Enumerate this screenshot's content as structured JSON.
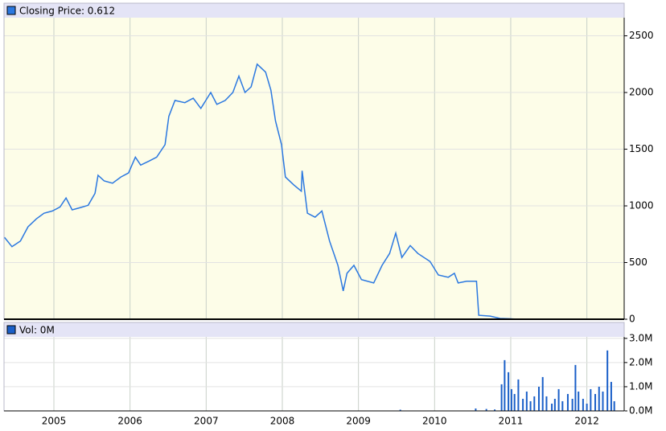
{
  "chart_data": [
    {
      "type": "line",
      "x": [
        2004.35,
        2004.45,
        2004.56,
        2004.66,
        2004.77,
        2004.87,
        2004.98,
        2005.08,
        2005.16,
        2005.24,
        2005.35,
        2005.45,
        2005.54,
        2005.58,
        2005.66,
        2005.77,
        2005.88,
        2005.98,
        2006.07,
        2006.14,
        2006.25,
        2006.35,
        2006.46,
        2006.51,
        2006.59,
        2006.72,
        2006.83,
        2006.93,
        2007.06,
        2007.14,
        2007.25,
        2007.35,
        2007.43,
        2007.51,
        2007.59,
        2007.67,
        2007.78,
        2007.85,
        2007.91,
        2007.99,
        2008.04,
        2008.15,
        2008.25,
        2008.26,
        2008.33,
        2008.43,
        2008.52,
        2008.62,
        2008.73,
        2008.8,
        2008.85,
        2008.94,
        2009.04,
        2009.2,
        2009.31,
        2009.41,
        2009.49,
        2009.57,
        2009.68,
        2009.78,
        2009.94,
        2010.05,
        2010.18,
        2010.26,
        2010.31,
        2010.42,
        2010.55,
        2010.58,
        2010.73,
        2010.86,
        2011.05,
        2011.68,
        2012.42
      ],
      "series": [
        {
          "name": "Closing Price: 0.612",
          "color": "#2b78e0",
          "values": [
            723,
            640,
            690,
            815,
            885,
            935,
            955,
            990,
            1070,
            965,
            985,
            1005,
            1110,
            1270,
            1220,
            1200,
            1255,
            1290,
            1430,
            1360,
            1395,
            1430,
            1540,
            1790,
            1930,
            1910,
            1950,
            1860,
            2000,
            1895,
            1930,
            2000,
            2145,
            2000,
            2050,
            2250,
            2180,
            2020,
            1750,
            1540,
            1255,
            1185,
            1130,
            1310,
            935,
            900,
            955,
            690,
            475,
            250,
            405,
            475,
            350,
            320,
            475,
            580,
            760,
            545,
            650,
            580,
            510,
            390,
            370,
            405,
            320,
            335,
            335,
            35,
            28,
            7,
            2,
            1,
            0.612
          ]
        }
      ],
      "xlim": [
        2004.345,
        2012.49
      ],
      "xticks": [
        2005,
        2006,
        2007,
        2008,
        2009,
        2010,
        2011,
        2012
      ],
      "ylim": [
        0,
        2660
      ],
      "yticks": [
        0,
        500,
        1000,
        1500,
        2000,
        2500
      ],
      "grid": true
    },
    {
      "type": "bar",
      "x": [
        2009.55,
        2010.54,
        2010.68,
        2010.79,
        2010.88,
        2010.92,
        2010.97,
        2011.01,
        2011.05,
        2011.1,
        2011.16,
        2011.21,
        2011.26,
        2011.31,
        2011.37,
        2011.42,
        2011.47,
        2011.54,
        2011.58,
        2011.63,
        2011.68,
        2011.75,
        2011.81,
        2011.85,
        2011.89,
        2011.95,
        2012.0,
        2012.05,
        2012.11,
        2012.16,
        2012.21,
        2012.27,
        2012.32,
        2012.36
      ],
      "series": [
        {
          "name": "Vol: 0M",
          "color": "#1a5fc8",
          "values": [
            50000,
            100000,
            80000,
            60000,
            1100000,
            2100000,
            1600000,
            900000,
            700000,
            1300000,
            500000,
            800000,
            400000,
            600000,
            1000000,
            1400000,
            600000,
            300000,
            500000,
            900000,
            400000,
            700000,
            500000,
            1900000,
            800000,
            500000,
            300000,
            900000,
            700000,
            1000000,
            800000,
            2500000,
            1200000,
            400000
          ]
        }
      ],
      "xlim": [
        2004.345,
        2012.49
      ],
      "xticks": [
        2005,
        2006,
        2007,
        2008,
        2009,
        2010,
        2011,
        2012
      ],
      "ylim": [
        0,
        3060000
      ],
      "yticks": [
        {
          "value": 0,
          "label": "0.0M"
        },
        {
          "value": 1000000,
          "label": "1.0M"
        },
        {
          "value": 2000000,
          "label": "2.0M"
        },
        {
          "value": 3000000,
          "label": "3.0M"
        }
      ],
      "grid": true
    }
  ]
}
